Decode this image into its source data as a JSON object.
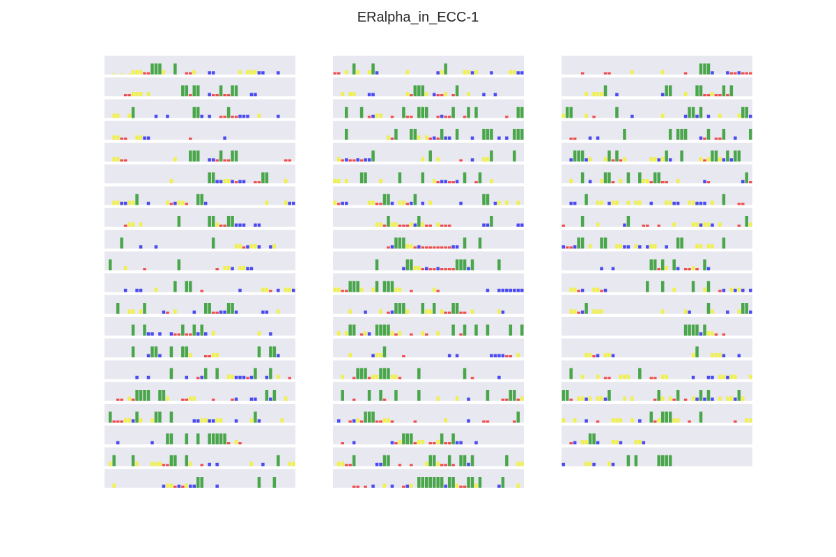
{
  "title": "ERalpha_in_ECC-1",
  "chart_data": {
    "type": "bar",
    "subtype": "sequence-logo-like motif profile grid",
    "title": "ERalpha_in_ECC-1",
    "layout": {
      "columns": 3,
      "rows_per_column": [
        20,
        20,
        19
      ]
    },
    "colors": {
      "A": "#3ca03c",
      "C": "#f0f040",
      "G": "#f03c3c",
      "T": "#3c3cf0"
    },
    "background": "#e8e8f0",
    "grid": false,
    "legend": "none",
    "ylim": [
      0,
      1
    ],
    "bins_per_panel": 50,
    "panels": [
      [
        "  x x xCCCGGAAAC  A  GGC   TT      C CCCTT   T    ",
        "     GGCCC C        AAGAA  TGGAGGAA   TT           ",
        "  CC  CA     T  T      AAT T  GGAGGTTT  C    T    G",
        "  CCGG  CCTT          G        T                    ",
        "  CCGG            C   AAA  TTGAGGAA            GG   ",
        "                 C         AATTCCTGTT  GGAA    C  C",
        "  CCTTCCA  T    CGTCCG  AAT               C    CTTGT",
        "     GCC C         A       AACGGAATTT  TT           ",
        "    A    T   T              A     CCGTCCT  TC    ",
        " A   C    G        A         G CCT CCTT    ",
        "     T  TT   C    A  AA  G         T     CCG T CCTTT",
        "   A  CC CA    TG C    T  AAGGTTAAT      TT  C       ",
        "       A  ATT T  TGGAGGATAT C           C  T   ",
        "       A   TAAT  A  AAC   GGCC          A  AAT  ",
        "        T  T     A   T  GTA  A  CCTTTGTA  TA C  G",
        "   GG CGAAAA  AAC   GGCC    G    GT   TT  ATA  C ",
        " AGGGCCTAC  CAA  A     TTCCTTCC   T   CAT     C  ",
        "   T        T   AA   A  A  AAAAAG CG",
        " CA    AC   CCCGGAA  AC  G T T        C  T   A  CCTC",
        "  C            TCCGTGCTTAA   T          A   A  "
      ],
      [
        "GG C AC  CAT       C       TCA    CCTC   T    CCTTT",
        "  C CC   TT        CGAAAC TGGC GA  C   T  T ",
        "   A   A GTCC  G  AGG AAA  GTGGA  GA A       G  AA",
        "   A          CGA   AAC CGTGATT A   T  AAA T T AAAG",
        " CGTGGTGTTA            C A C     G  T  CCA     A  TA",
        "CC C   AA   C    A     A  CGTTGGT A  GA  C      ",
        "CGTT     CCGGAAT CCGTA T C       T     AA TC C  C  ",
        "           CCGACCGGGCTACGG CGGG        TTA      TT C",
        "              GTAAACCGTGGGGGGGGTT A   A      ",
        "           A      TAACCGTGGTGGGGAAATA      A     ",
        "CCGGAAAC  CA AAACC  G     CG            T  TTTTTTTT",
        "    C   T   C GTAAAC   ACCA CGGAAGG C      CT      ",
        " C CAA GCT AAAACGC  G  CG  C   A GA  A  A     A  A",
        "    C     TCCA    G           T T        TTTTGG C ",
        "  C  GAAAGCCAAACCG    A           A G      T       ",
        "  A  G   A  AG  A     A    C    C  T    A   GGAAGC G",
        " T  GTCGAAAGGCCG     G       C     T   GG      GA  ",
        "  G  T         TGCAAAGCC GGCAGGATT   T  ",
        " CCGGA     TTAA  G  G   CAACGGAG AATA        A  CC ",
        "     GG G T  C T  GTC AAAAAAATAACGGAACA    TA   C  "
      ],
      [
        "     G     GG     C       C     G   AAAT   TGGTGGGTGT",
        "      C CCCA  T           TAA   C  AAGGCGGAGA    ",
        "CAA   C G     A   T       C     TAATA T  C    CAATT",
        "  GG   T T      A           A AAA   TGA GGA  T   AA",
        "  TAAATC   CAGAGC      CCTCAT  A    CGCAACTATAA   G",
        "  C  A T  CAAG C A  ACCGAAGG  C      TG        TAGG",
        "  TT  A  CC TCC  C CC  T   CCTT  CCTTT C  A   GG  ",
        "G    A   C      TA   GG  G   C    CCTCCT C    G AC",
        "TGGTAA C  AA  CCTT CT TCC  T  AA   CC CC  A   ",
        "          T  T         AAGAC AT GGCG AT   ",
        "  CCGT  CCGT          A   A  C    A  CA  GT CTCT TT",
        "  CCGTA CCC               C     CT    AC   T  CAATT",
        "                                AAAATACCG G      ",
        "      CCGT CCT                    CA   CCCT   T   ",
        "  A  C   C GG  CCC  A  GG CC      T   TT CCTCC   C ",
        "AAG CCTC CCTA   C C     GAC CGA G CTATAT C CCTAC",
        "C  C  T  G   CCC  C T  AGCAAACC  G  A        G  CCT",
        "  GT CCAAT   CCT   CCT  ",
        "T     CCT   CT   A A     AAAA"
      ]
    ]
  }
}
